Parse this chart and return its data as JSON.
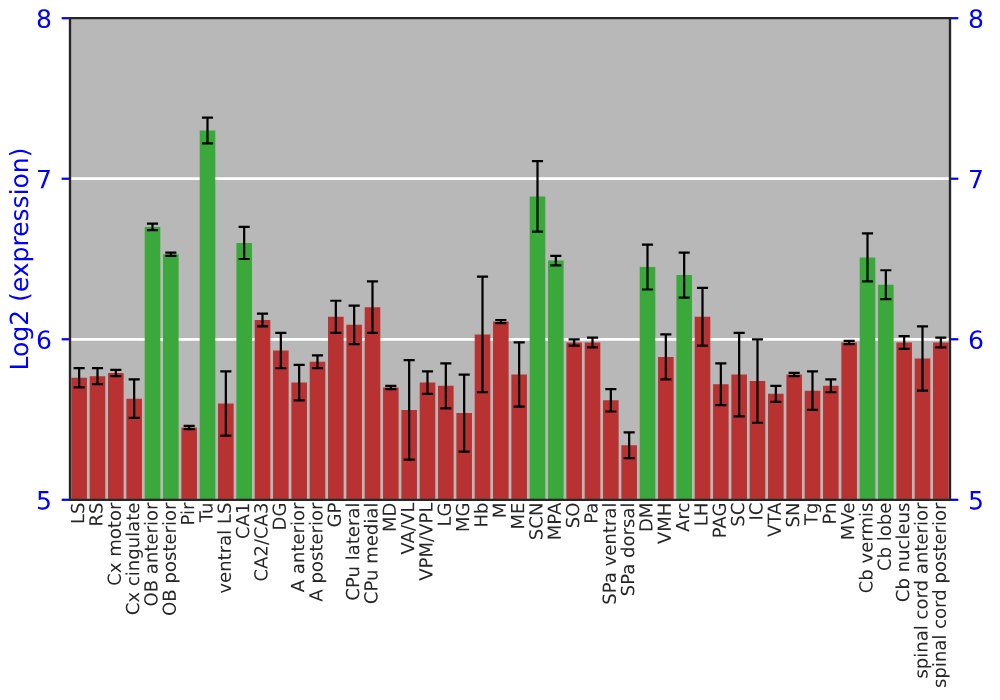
{
  "chart_data": {
    "type": "bar",
    "ylabel": "Log2 (expression)",
    "categories": [
      "LS",
      "RS",
      "Cx motor",
      "Cx cingulate",
      "OB anterior",
      "OB posterior",
      "Pir",
      "Tu",
      "ventral LS",
      "CA1",
      "CA2/CA3",
      "DG",
      "A anterior",
      "A posterior",
      "GP",
      "CPu lateral",
      "CPu medial",
      "MD",
      "VA/VL",
      "VPM/VPL",
      "LG",
      "MG",
      "Hb",
      "M",
      "ME",
      "SCN",
      "MPA",
      "SO",
      "Pa",
      "SPa ventral",
      "SPa dorsal",
      "DM",
      "VMH",
      "Arc",
      "LH",
      "PAG",
      "SC",
      "IC",
      "VTA",
      "SN",
      "Tg",
      "Pn",
      "MVe",
      "Cb vermis",
      "Cb lobe",
      "Cb nucleus",
      "spinal cord anterior",
      "spinal cord posterior"
    ],
    "values": [
      5.76,
      5.77,
      5.79,
      5.63,
      6.7,
      6.53,
      5.45,
      7.3,
      5.6,
      6.6,
      6.12,
      5.93,
      5.73,
      5.86,
      6.14,
      6.09,
      6.2,
      5.7,
      5.56,
      5.73,
      5.71,
      5.54,
      6.03,
      6.11,
      5.78,
      6.89,
      6.49,
      5.98,
      5.98,
      5.62,
      5.34,
      6.45,
      5.89,
      6.4,
      6.14,
      5.72,
      5.78,
      5.74,
      5.66,
      5.78,
      5.68,
      5.71,
      5.98,
      6.51,
      6.34,
      5.98,
      5.88,
      5.98
    ],
    "errors": [
      0.06,
      0.05,
      0.02,
      0.12,
      0.02,
      0.01,
      0.01,
      0.08,
      0.2,
      0.1,
      0.04,
      0.11,
      0.11,
      0.04,
      0.1,
      0.12,
      0.16,
      0.01,
      0.31,
      0.07,
      0.14,
      0.24,
      0.36,
      0.01,
      0.2,
      0.22,
      0.03,
      0.02,
      0.03,
      0.07,
      0.08,
      0.14,
      0.14,
      0.14,
      0.18,
      0.13,
      0.26,
      0.26,
      0.05,
      0.01,
      0.12,
      0.04,
      0.01,
      0.15,
      0.09,
      0.04,
      0.2,
      0.03
    ],
    "colors": [
      "#b83232",
      "#b83232",
      "#b83232",
      "#b83232",
      "#3aa83a",
      "#3aa83a",
      "#b83232",
      "#3aa83a",
      "#b83232",
      "#3aa83a",
      "#b83232",
      "#b83232",
      "#b83232",
      "#b83232",
      "#b83232",
      "#b83232",
      "#b83232",
      "#b83232",
      "#b83232",
      "#b83232",
      "#b83232",
      "#b83232",
      "#b83232",
      "#b83232",
      "#b83232",
      "#3aa83a",
      "#3aa83a",
      "#b83232",
      "#b83232",
      "#b83232",
      "#b83232",
      "#3aa83a",
      "#b83232",
      "#3aa83a",
      "#b83232",
      "#b83232",
      "#b83232",
      "#b83232",
      "#b83232",
      "#b83232",
      "#b83232",
      "#b83232",
      "#b83232",
      "#3aa83a",
      "#3aa83a",
      "#b83232",
      "#b83232",
      "#b83232"
    ],
    "ylim": [
      5,
      8
    ],
    "yticks": [
      5,
      6,
      7,
      8
    ],
    "y2lim": [
      5,
      8
    ],
    "y2ticks": [
      5,
      6,
      7,
      8
    ],
    "grid": "y"
  }
}
